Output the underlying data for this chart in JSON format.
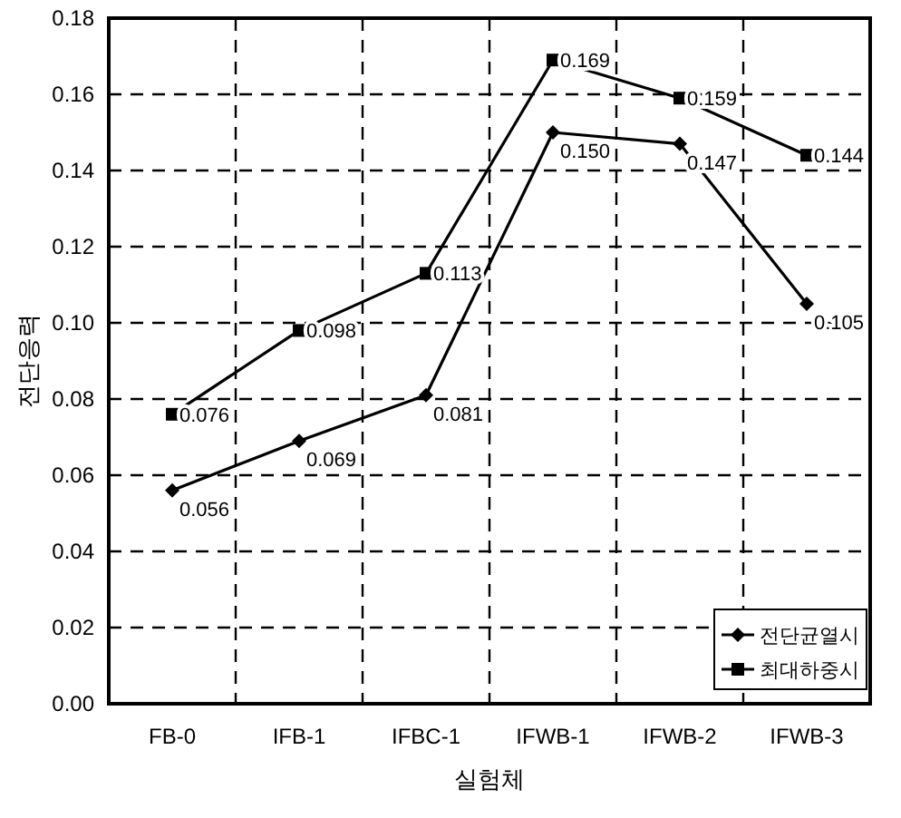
{
  "chart_data": {
    "type": "line",
    "xlabel": "실험체",
    "ylabel": "전단응력",
    "categories": [
      "FB-0",
      "IFB-1",
      "IFBC-1",
      "IFWB-1",
      "IFWB-2",
      "IFWB-3"
    ],
    "series": [
      {
        "name": "전단균열시",
        "color": "#000000",
        "marker": "diamond",
        "values": [
          0.056,
          0.069,
          0.081,
          0.15,
          0.147,
          0.105
        ],
        "value_labels": [
          "0.056",
          "0.069",
          "0.081",
          "0.150",
          "0.147",
          "0.105"
        ]
      },
      {
        "name": "최대하중시",
        "color": "#000000",
        "marker": "square",
        "values": [
          0.076,
          0.098,
          0.113,
          0.169,
          0.159,
          0.144
        ],
        "value_labels": [
          "0.076",
          "0.098",
          "0.113",
          "0.169",
          "0.159",
          "0.144"
        ]
      }
    ],
    "ylim": [
      0,
      0.18
    ],
    "yticks": [
      {
        "value": 0,
        "label": "0.00"
      },
      {
        "value": 0.02,
        "label": "0.02"
      },
      {
        "value": 0.04,
        "label": "0.04"
      },
      {
        "value": 0.06,
        "label": "0.06"
      },
      {
        "value": 0.08,
        "label": "0.08"
      },
      {
        "value": 0.1,
        "label": "0.10"
      },
      {
        "value": 0.12,
        "label": "0.12"
      },
      {
        "value": 0.14,
        "label": "0.14"
      },
      {
        "value": 0.16,
        "label": "0.16"
      },
      {
        "value": 0.18,
        "label": "0.18"
      }
    ],
    "grid": true,
    "legend": "bottom right",
    "line_style": "solid"
  }
}
